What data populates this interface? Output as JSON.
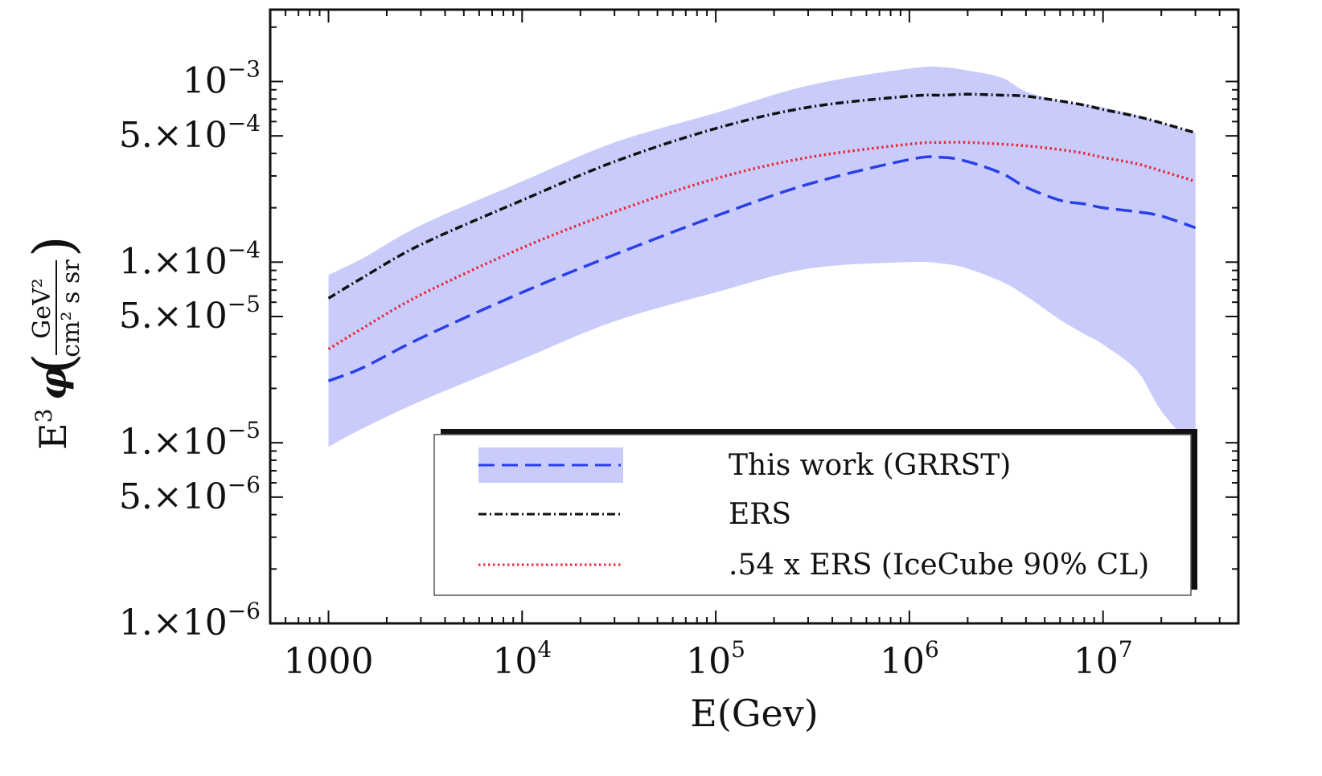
{
  "chart_data": {
    "type": "line",
    "xlabel": "E(Gev)",
    "ylabel": {
      "prefix": "E",
      "prefix_sup": "3",
      "phi": "φ",
      "numerator": "GeV²",
      "denominator": "cm² s sr"
    },
    "x_scale": "log",
    "y_scale": "log",
    "xlim": [
      500,
      50000000
    ],
    "ylim": [
      1e-06,
      0.0025
    ],
    "x_ticks": [
      {
        "value": 1000,
        "label": "1000",
        "base": "",
        "exp": ""
      },
      {
        "value": 10000,
        "label": "",
        "base": "10",
        "exp": "4"
      },
      {
        "value": 100000,
        "label": "",
        "base": "10",
        "exp": "5"
      },
      {
        "value": 1000000,
        "label": "",
        "base": "10",
        "exp": "6"
      },
      {
        "value": 10000000,
        "label": "",
        "base": "10",
        "exp": "7"
      }
    ],
    "y_ticks": [
      {
        "value": 0.001,
        "mant": "",
        "exp": "−3"
      },
      {
        "value": 0.0005,
        "mant": "5.×",
        "exp": "−4"
      },
      {
        "value": 0.0001,
        "mant": "1.×",
        "exp": "−4"
      },
      {
        "value": 5e-05,
        "mant": "5.×",
        "exp": "−5"
      },
      {
        "value": 1e-05,
        "mant": "1.×",
        "exp": "−5"
      },
      {
        "value": 5e-06,
        "mant": "5.×",
        "exp": "−6"
      },
      {
        "value": 1e-06,
        "mant": "1.×",
        "exp": "−6"
      }
    ],
    "x": [
      1000,
      1500,
      3000,
      10000,
      30000,
      100000,
      300000,
      1000000,
      1500000,
      2000000,
      3000000,
      4000000,
      6000000,
      8000000,
      10000000,
      15000000,
      20000000,
      30000000
    ],
    "band": {
      "upper": [
        8.5e-05,
        0.000105,
        0.00016,
        0.00028,
        0.00046,
        0.00067,
        0.00095,
        0.00118,
        0.0012,
        0.00115,
        0.00105,
        0.00088,
        0.00078,
        0.00075,
        0.00072,
        0.00065,
        0.00059,
        0.00052
      ],
      "lower": [
        9.5e-06,
        1.2e-05,
        1.7e-05,
        2.9e-05,
        4.7e-05,
        6.8e-05,
        9.2e-05,
        0.0001,
        9.8e-05,
        9.2e-05,
        7.8e-05,
        6.5e-05,
        4.8e-05,
        4e-05,
        3.5e-05,
        2.5e-05,
        1.5e-05,
        9e-06
      ],
      "color": "#c9ccfb"
    },
    "series": [
      {
        "name": "This work (GRRST)",
        "color": "#2a3fe8",
        "dash": "dashed",
        "values": [
          2.2e-05,
          2.6e-05,
          3.8e-05,
          6.8e-05,
          0.00011,
          0.00018,
          0.00027,
          0.00037,
          0.00038,
          0.00036,
          0.00031,
          0.00026,
          0.00022,
          0.00021,
          0.0002,
          0.00019,
          0.00018,
          0.000155
        ]
      },
      {
        "name": "ERS",
        "color": "#111111",
        "dash": "dashdot",
        "values": [
          6.3e-05,
          8.2e-05,
          0.000125,
          0.00022,
          0.00036,
          0.00055,
          0.00072,
          0.00083,
          0.00084,
          0.00085,
          0.00084,
          0.00083,
          0.00078,
          0.00074,
          0.0007,
          0.00064,
          0.00059,
          0.00052
        ]
      },
      {
        "name": ".54 x ERS (IceCube 90% CL)",
        "color": "#e8293a",
        "dash": "dotted",
        "values": [
          3.3e-05,
          4.3e-05,
          6.6e-05,
          0.00012,
          0.00019,
          0.00029,
          0.00038,
          0.00045,
          0.00046,
          0.00046,
          0.00045,
          0.00044,
          0.00042,
          0.0004,
          0.00038,
          0.00035,
          0.00032,
          0.00028
        ]
      }
    ],
    "legend": {
      "placement": "bottom-right",
      "entries": [
        "This work (GRRST)",
        "ERS",
        ".54 x ERS (IceCube 90% CL)"
      ]
    }
  }
}
